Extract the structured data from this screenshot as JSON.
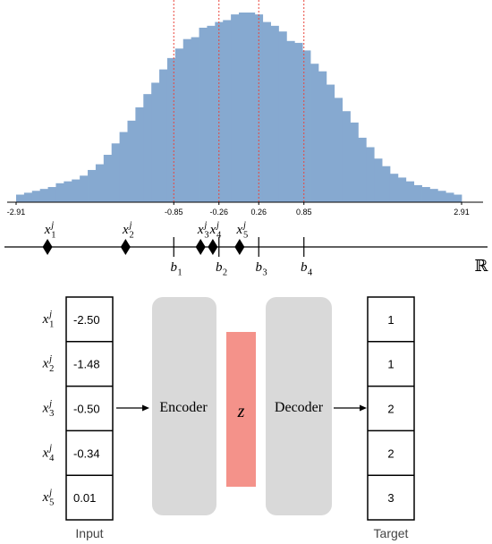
{
  "histogram": {
    "x_min": -2.91,
    "x_max": 2.91,
    "tick_labels": [
      "-2.91",
      "-0.85",
      "-0.26",
      "0.26",
      "0.85",
      "2.91"
    ],
    "tick_values": [
      -2.91,
      -0.85,
      -0.26,
      0.26,
      0.85,
      2.91
    ],
    "quantile_lines": [
      -0.85,
      -0.26,
      0.26,
      0.85
    ],
    "bin_heights": [
      0.04,
      0.05,
      0.06,
      0.07,
      0.08,
      0.1,
      0.11,
      0.12,
      0.14,
      0.17,
      0.2,
      0.25,
      0.31,
      0.37,
      0.43,
      0.5,
      0.57,
      0.63,
      0.7,
      0.76,
      0.81,
      0.86,
      0.87,
      0.92,
      0.93,
      0.95,
      0.96,
      0.99,
      1.0,
      1.0,
      0.99,
      0.95,
      0.93,
      0.9,
      0.85,
      0.84,
      0.8,
      0.73,
      0.69,
      0.62,
      0.55,
      0.48,
      0.42,
      0.34,
      0.29,
      0.23,
      0.19,
      0.15,
      0.13,
      0.11,
      0.09,
      0.08,
      0.07,
      0.06,
      0.05,
      0.04
    ],
    "bar_color": "#86a9d0",
    "line_color": "#e8453c"
  },
  "number_line": {
    "symbol": "ℝ",
    "points": [
      {
        "base": "x",
        "sub": "1",
        "sup": "j",
        "value": -2.5
      },
      {
        "base": "x",
        "sub": "2",
        "sup": "j",
        "value": -1.48
      },
      {
        "base": "x",
        "sub": "3",
        "sup": "j",
        "value": -0.5
      },
      {
        "base": "x",
        "sub": "4",
        "sup": "j",
        "value": -0.34
      },
      {
        "base": "x",
        "sub": "5",
        "sup": "j",
        "value": 0.01
      }
    ],
    "boundaries": [
      {
        "base": "b",
        "sub": "1",
        "value": -0.85
      },
      {
        "base": "b",
        "sub": "2",
        "value": -0.26
      },
      {
        "base": "b",
        "sub": "3",
        "value": 0.26
      },
      {
        "base": "b",
        "sub": "4",
        "value": 0.85
      }
    ]
  },
  "input_table": {
    "caption": "Input",
    "rows": [
      {
        "base": "x",
        "sub": "1",
        "sup": "j",
        "value": "-2.50"
      },
      {
        "base": "x",
        "sub": "2",
        "sup": "j",
        "value": "-1.48"
      },
      {
        "base": "x",
        "sub": "3",
        "sup": "j",
        "value": "-0.50"
      },
      {
        "base": "x",
        "sub": "4",
        "sup": "j",
        "value": "-0.34"
      },
      {
        "base": "x",
        "sub": "5",
        "sup": "j",
        "value": "0.01"
      }
    ]
  },
  "encoder": {
    "label": "Encoder",
    "color": "#d9d9d9"
  },
  "latent": {
    "label": "z",
    "color": "#f4928a"
  },
  "decoder": {
    "label": "Decoder",
    "color": "#d9d9d9"
  },
  "target_table": {
    "caption": "Target",
    "values": [
      "1",
      "1",
      "2",
      "2",
      "3"
    ]
  }
}
